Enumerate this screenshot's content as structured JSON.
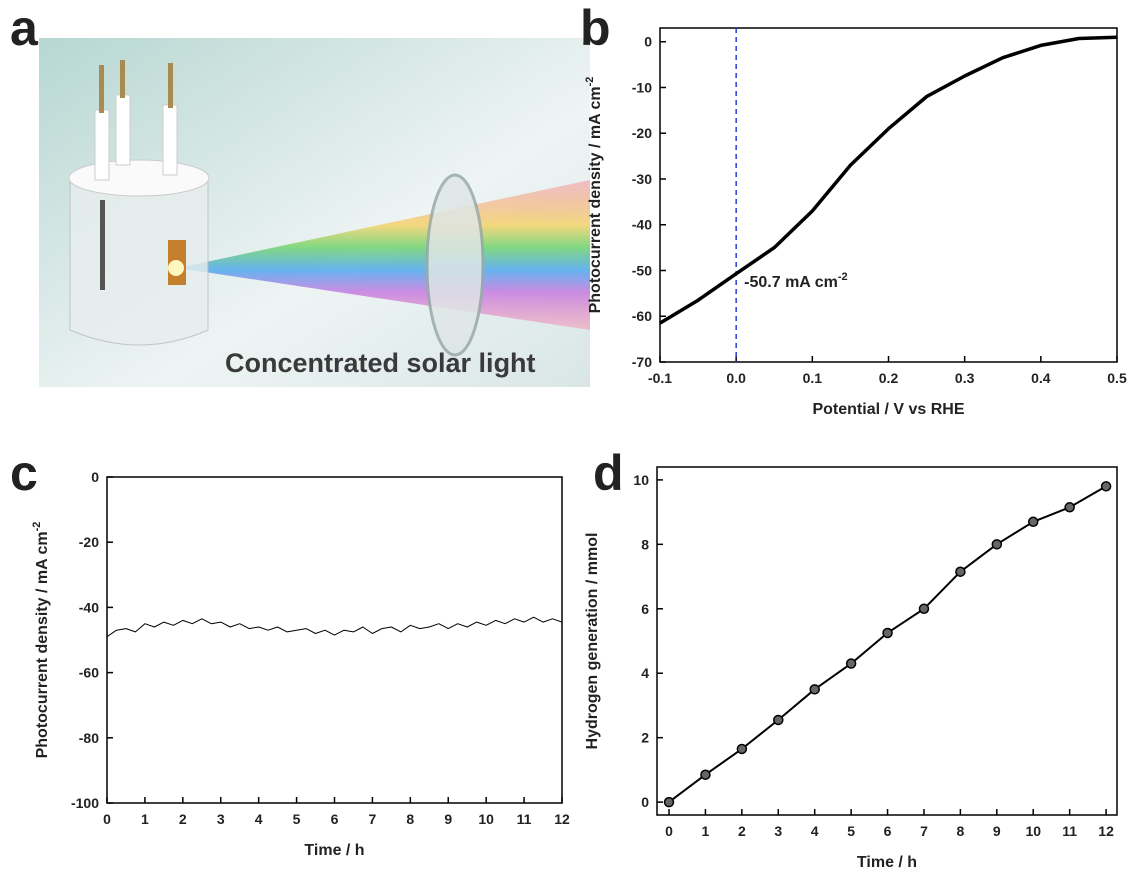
{
  "illustration": {
    "panel_label": "a",
    "caption": "Concentrated solar light"
  },
  "chart_data": [
    {
      "type": "line",
      "panel_label": "b",
      "color": "#000000",
      "line_width": 3.5,
      "x": [
        -0.1,
        -0.05,
        0,
        0.05,
        0.1,
        0.15,
        0.2,
        0.25,
        0.3,
        0.35,
        0.4,
        0.45,
        0.5
      ],
      "values": [
        -61.5,
        -56.5,
        -50.7,
        -45,
        -37,
        -27,
        -19,
        -12,
        -7.5,
        -3.5,
        -0.8,
        0.7,
        1.0
      ],
      "xlim": [
        -0.1,
        0.5
      ],
      "xticks": [
        -0.1,
        {
          "value": 0,
          "label": "0.0"
        },
        0.1,
        0.2,
        0.3,
        0.4,
        0.5
      ],
      "ylim": [
        -70,
        3
      ],
      "yticks": [
        0,
        -10,
        -20,
        -30,
        -40,
        -50,
        -60,
        -70
      ],
      "xlabel": "Potential / V vs RHE",
      "ylabel": "Photocurrent density / mA cm",
      "ylabel_sup": "-2",
      "vline": {
        "x": 0,
        "color": "#2b3bd6"
      },
      "annotation": "-50.7 mA cm",
      "annotation_sup": "-2"
    },
    {
      "type": "line",
      "panel_label": "c",
      "color": "#000000",
      "line_width": 1,
      "x": [
        0,
        0.25,
        0.5,
        0.75,
        1,
        1.25,
        1.5,
        1.75,
        2,
        2.25,
        2.5,
        2.75,
        3,
        3.25,
        3.5,
        3.75,
        4,
        4.25,
        4.5,
        4.75,
        5,
        5.25,
        5.5,
        5.75,
        6,
        6.25,
        6.5,
        6.75,
        7,
        7.25,
        7.5,
        7.75,
        8,
        8.25,
        8.5,
        8.75,
        9,
        9.25,
        9.5,
        9.75,
        10,
        10.25,
        10.5,
        10.75,
        11,
        11.25,
        11.5,
        11.75,
        12
      ],
      "values": [
        -49,
        -47,
        -46.5,
        -47.5,
        -45,
        -46,
        -44.5,
        -45.5,
        -44,
        -45,
        -43.5,
        -45,
        -44.5,
        -46,
        -45,
        -46.5,
        -46,
        -47,
        -46,
        -47.5,
        -47,
        -46.5,
        -48,
        -47,
        -48.5,
        -47,
        -47.5,
        -46,
        -48,
        -46.5,
        -46,
        -47.5,
        -45.5,
        -46.5,
        -46,
        -45,
        -46.5,
        -45,
        -46,
        -44.5,
        -45.5,
        -44,
        -45,
        -43.5,
        -44.5,
        -43,
        -44.5,
        -43.5,
        -44.5
      ],
      "xlim": [
        0,
        12
      ],
      "xticks": [
        0,
        1,
        2,
        3,
        4,
        5,
        6,
        7,
        8,
        9,
        10,
        11,
        12
      ],
      "ylim": [
        -100,
        0
      ],
      "yticks": [
        0,
        -20,
        -40,
        -60,
        -80,
        -100
      ],
      "xlabel": "Time / h",
      "ylabel": "Photocurrent density / mA cm",
      "ylabel_sup": "-2"
    },
    {
      "type": "line",
      "panel_label": "d",
      "color": "#000000",
      "line_width": 2,
      "markers": true,
      "x": [
        0,
        1,
        2,
        3,
        4,
        5,
        6,
        7,
        8,
        9,
        10,
        11,
        12
      ],
      "values": [
        0,
        0.85,
        1.65,
        2.55,
        3.5,
        4.3,
        5.25,
        6.0,
        7.15,
        8.0,
        8.7,
        9.15,
        9.8
      ],
      "xlim": [
        -0.33,
        12.3
      ],
      "xticks": [
        0,
        1,
        2,
        3,
        4,
        5,
        6,
        7,
        8,
        9,
        10,
        11,
        12
      ],
      "ylim": [
        -0.4,
        10.4
      ],
      "yticks": [
        0,
        2,
        4,
        6,
        8,
        10
      ],
      "xlabel": "Time / h",
      "ylabel": "Hydrogen generation / mmol"
    }
  ]
}
